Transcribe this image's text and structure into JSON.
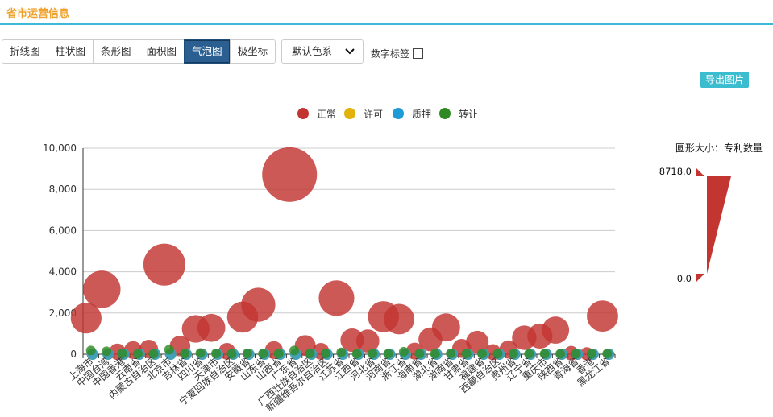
{
  "header": {
    "title": "省市运营信息"
  },
  "toolbar": {
    "tabs": [
      "折线图",
      "柱状图",
      "条形图",
      "面积图",
      "气泡图",
      "极坐标"
    ],
    "active_tab": "气泡图",
    "theme_label": "默认色系",
    "label_toggle": "数字标签",
    "export_label": "导出图片"
  },
  "colors": {
    "accent": "#3cb8d8",
    "title": "#f0a22e",
    "active_tab": "#2b5f91",
    "export": "#3cbccf"
  },
  "chart_data": {
    "type": "scatter",
    "subtype": "bubble",
    "legend_position": "top",
    "x_categories": [
      "上海市",
      "中国台湾",
      "中国香港",
      "云南省",
      "内蒙古自治区",
      "北京市",
      "吉林省",
      "四川省",
      "天津市",
      "宁夏回族自治区",
      "安徽省",
      "山东省",
      "山西省",
      "广东省",
      "广西壮族自治区",
      "新疆维吾尔自治区",
      "江苏省",
      "江西省",
      "河北省",
      "河南省",
      "浙江省",
      "海南省",
      "湖北省",
      "湖南省",
      "甘肃省",
      "福建省",
      "西藏自治区",
      "贵州省",
      "辽宁省",
      "重庆市",
      "陕西省",
      "青海省",
      "香港",
      "黑龙江省"
    ],
    "ylim": [
      0,
      10000
    ],
    "y_ticks": [
      "0",
      "2,000",
      "4,000",
      "6,000",
      "8,000",
      "10,000"
    ],
    "grid": true,
    "series": [
      {
        "name": "正常",
        "color": "#c23531",
        "offset": -0.3,
        "values": [
          1750,
          3150,
          120,
          200,
          250,
          4350,
          400,
          1230,
          1280,
          140,
          1800,
          2400,
          200,
          8718,
          420,
          140,
          2720,
          680,
          640,
          1820,
          1700,
          150,
          720,
          1300,
          280,
          590,
          100,
          230,
          800,
          880,
          1170,
          50,
          20,
          1850
        ]
      },
      {
        "name": "许可",
        "color": "#e0b20b",
        "offset": 0.1,
        "values": [
          0,
          0,
          0,
          0,
          0,
          0,
          0,
          0,
          0,
          0,
          0,
          0,
          0,
          0,
          0,
          0,
          0,
          0,
          0,
          0,
          0,
          0,
          0,
          0,
          0,
          0,
          0,
          0,
          0,
          0,
          0,
          0,
          0,
          0
        ]
      },
      {
        "name": "质押",
        "color": "#1e9ad6",
        "offset": 0.1,
        "values": [
          0,
          0,
          0,
          0,
          0,
          0,
          0,
          0,
          0,
          0,
          0,
          0,
          0,
          0,
          0,
          0,
          0,
          0,
          0,
          0,
          0,
          0,
          0,
          0,
          0,
          0,
          0,
          0,
          0,
          0,
          0,
          0,
          0,
          0
        ]
      },
      {
        "name": "转让",
        "color": "#2f8a25",
        "offset": 0,
        "values": [
          180,
          140,
          30,
          20,
          20,
          220,
          20,
          60,
          40,
          20,
          40,
          30,
          30,
          180,
          30,
          30,
          90,
          20,
          30,
          20,
          120,
          30,
          20,
          40,
          30,
          30,
          20,
          20,
          20,
          20,
          20,
          20,
          20,
          30
        ]
      }
    ],
    "visual_map": {
      "title": "圆形大小：专利数量",
      "max_label": "8718.0",
      "min_label": "0.0",
      "max": 8718,
      "min": 0
    }
  }
}
